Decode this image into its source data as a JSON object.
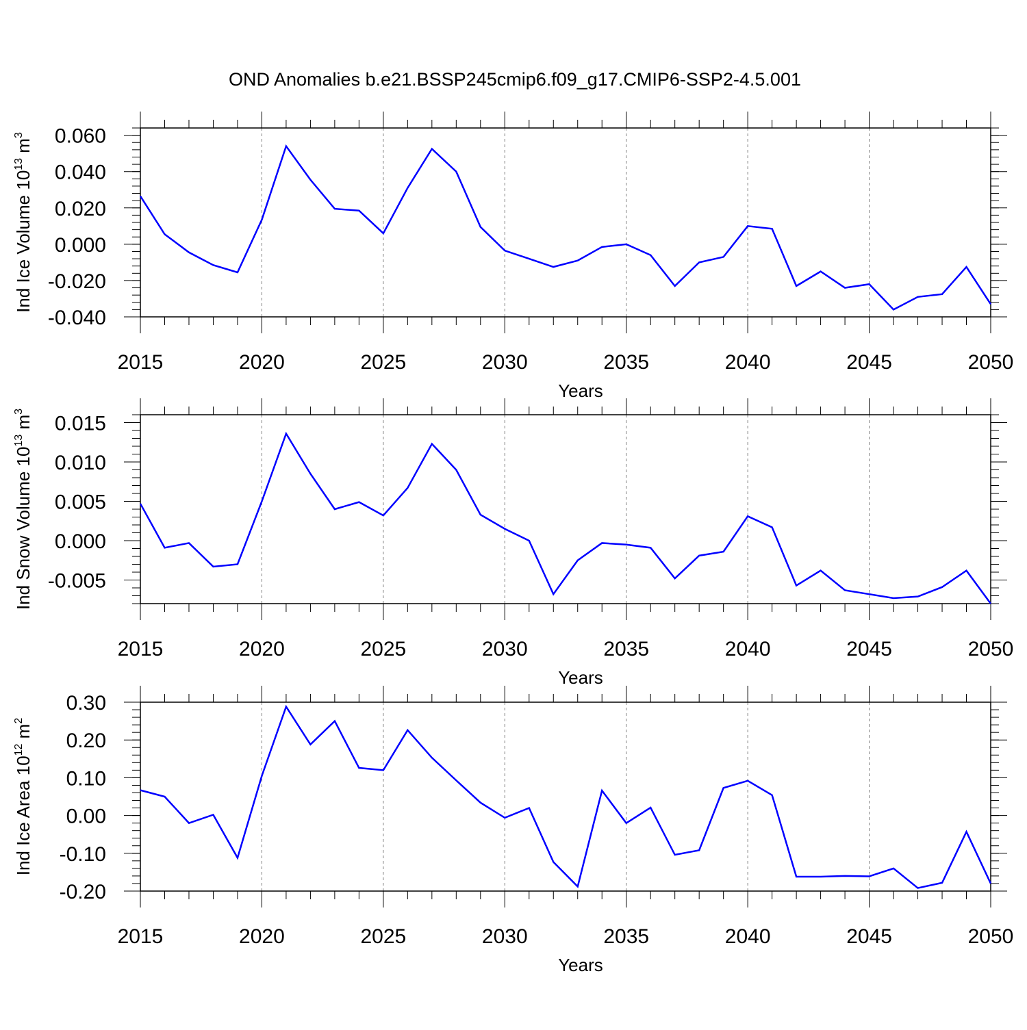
{
  "figure": {
    "title": "OND Anomalies b.e21.BSSP245cmip6.f09_g17.CMIP6-SSP2-4.5.001"
  },
  "style": {
    "line_color": "#0000ff",
    "axis_color": "#000000",
    "grid_color": "#808080"
  },
  "chart_data": [
    {
      "type": "line",
      "title": "OND Anomalies b.e21.BSSP245cmip6.f09_g17.CMIP6-SSP2-4.5.001",
      "ylabel": {
        "base": "Ind Ice Volume 10",
        "exp": "13",
        "unit": " m",
        "unit_exp": "3"
      },
      "xlabel": "Years",
      "xlim": [
        2015,
        2050
      ],
      "ylim": [
        -0.04,
        0.064
      ],
      "xticks": [
        2015,
        2020,
        2025,
        2030,
        2035,
        2040,
        2045,
        2050
      ],
      "xtick_labels": [
        "2015",
        "2020",
        "2025",
        "2030",
        "2035",
        "2040",
        "2045",
        "2050"
      ],
      "yticks": [
        0.06,
        0.04,
        0.02,
        0.0,
        -0.02,
        -0.04
      ],
      "ytick_labels": [
        "0.060",
        "0.040",
        "0.020",
        "0.000",
        "-0.020",
        "-0.040"
      ],
      "grid": "vertical-dashed",
      "x": [
        2015,
        2016,
        2017,
        2018,
        2019,
        2020,
        2021,
        2022,
        2023,
        2024,
        2025,
        2026,
        2027,
        2028,
        2029,
        2030,
        2031,
        2032,
        2033,
        2034,
        2035,
        2036,
        2037,
        2038,
        2039,
        2040,
        2041,
        2042,
        2043,
        2044,
        2045,
        2046,
        2047,
        2048,
        2049,
        2050
      ],
      "values": [
        0.0265,
        0.0055,
        -0.0045,
        -0.0115,
        -0.0155,
        0.0135,
        0.054,
        0.0355,
        0.0195,
        0.0185,
        0.006,
        0.031,
        0.0525,
        0.04,
        0.0095,
        -0.0035,
        -0.008,
        -0.0125,
        -0.009,
        -0.0015,
        0.0,
        -0.006,
        -0.023,
        -0.01,
        -0.007,
        0.01,
        0.0085,
        -0.023,
        -0.015,
        -0.024,
        -0.022,
        -0.036,
        -0.029,
        -0.0275,
        -0.0125,
        -0.033
      ]
    },
    {
      "type": "line",
      "ylabel": {
        "base": "Ind Snow Volume 10",
        "exp": "13",
        "unit": " m",
        "unit_exp": "3"
      },
      "xlabel": "Years",
      "xlim": [
        2015,
        2050
      ],
      "ylim": [
        -0.008,
        0.016
      ],
      "xticks": [
        2015,
        2020,
        2025,
        2030,
        2035,
        2040,
        2045,
        2050
      ],
      "xtick_labels": [
        "2015",
        "2020",
        "2025",
        "2030",
        "2035",
        "2040",
        "2045",
        "2050"
      ],
      "yticks": [
        0.015,
        0.01,
        0.005,
        0.0,
        -0.005
      ],
      "ytick_labels": [
        "0.015",
        "0.010",
        "0.005",
        "0.000",
        "-0.005"
      ],
      "grid": "vertical-dashed",
      "x": [
        2015,
        2016,
        2017,
        2018,
        2019,
        2020,
        2021,
        2022,
        2023,
        2024,
        2025,
        2026,
        2027,
        2028,
        2029,
        2030,
        2031,
        2032,
        2033,
        2034,
        2035,
        2036,
        2037,
        2038,
        2039,
        2040,
        2041,
        2042,
        2043,
        2044,
        2045,
        2046,
        2047,
        2048,
        2049,
        2050
      ],
      "values": [
        0.0047,
        -0.0009,
        -0.0003,
        -0.0033,
        -0.003,
        0.005,
        0.0136,
        0.0085,
        0.004,
        0.0049,
        0.0032,
        0.0067,
        0.0123,
        0.009,
        0.0033,
        0.0015,
        0.0,
        -0.0068,
        -0.0025,
        -0.0003,
        -0.0005,
        -0.0009,
        -0.0048,
        -0.0019,
        -0.0014,
        0.0031,
        0.0017,
        -0.0057,
        -0.0038,
        -0.0063,
        -0.0068,
        -0.0073,
        -0.0071,
        -0.0059,
        -0.0038,
        -0.008
      ]
    },
    {
      "type": "line",
      "ylabel": {
        "base": "Ind Ice Area 10",
        "exp": "12",
        "unit": " m",
        "unit_exp": "2"
      },
      "xlabel": "Years",
      "xlim": [
        2015,
        2050
      ],
      "ylim": [
        -0.2,
        0.3
      ],
      "xticks": [
        2015,
        2020,
        2025,
        2030,
        2035,
        2040,
        2045,
        2050
      ],
      "xtick_labels": [
        "2015",
        "2020",
        "2025",
        "2030",
        "2035",
        "2040",
        "2045",
        "2050"
      ],
      "yticks": [
        0.3,
        0.2,
        0.1,
        0.0,
        -0.1,
        -0.2
      ],
      "ytick_labels": [
        "0.30",
        "0.20",
        "0.10",
        "0.00",
        "-0.10",
        "-0.20"
      ],
      "grid": "vertical-dashed",
      "x": [
        2015,
        2016,
        2017,
        2018,
        2019,
        2020,
        2021,
        2022,
        2023,
        2024,
        2025,
        2026,
        2027,
        2028,
        2029,
        2030,
        2031,
        2032,
        2033,
        2034,
        2035,
        2036,
        2037,
        2038,
        2039,
        2040,
        2041,
        2042,
        2043,
        2044,
        2045,
        2046,
        2047,
        2048,
        2049,
        2050
      ],
      "values": [
        0.067,
        0.05,
        -0.02,
        0.002,
        -0.112,
        0.105,
        0.288,
        0.188,
        0.25,
        0.126,
        0.12,
        0.226,
        0.153,
        0.093,
        0.034,
        -0.006,
        0.02,
        -0.123,
        -0.188,
        0.066,
        -0.02,
        0.021,
        -0.104,
        -0.092,
        0.073,
        0.092,
        0.054,
        -0.162,
        -0.162,
        -0.16,
        -0.161,
        -0.14,
        -0.192,
        -0.178,
        -0.043,
        -0.18
      ]
    }
  ]
}
